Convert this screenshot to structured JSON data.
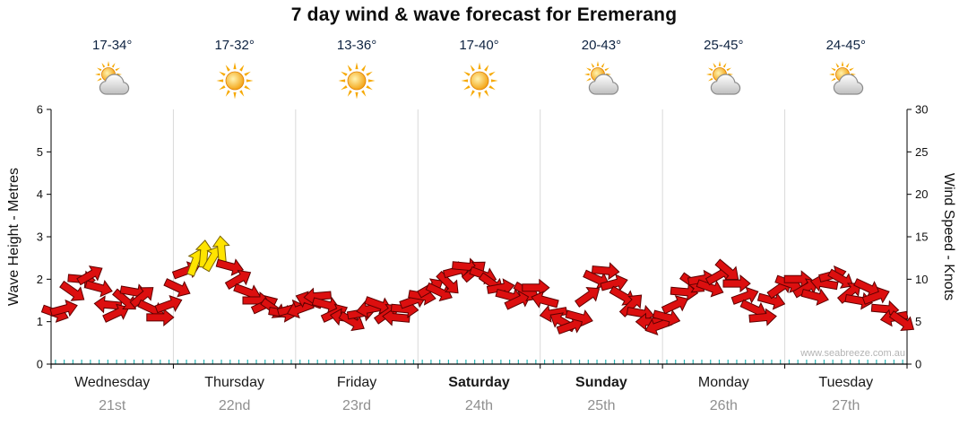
{
  "title": "7 day wind & wave forecast for Eremerang",
  "watermark": "www.seabreeze.com.au",
  "y_left": {
    "label": "Wave Height - Metres",
    "ticks": [
      0,
      1,
      2,
      3,
      4,
      5,
      6
    ]
  },
  "y_right": {
    "label": "Wind Speed - Knots",
    "ticks": [
      0,
      5,
      10,
      15,
      20,
      25,
      30
    ]
  },
  "days": [
    {
      "name": "Wednesday",
      "date": "21st",
      "temp": "17-34°",
      "icon": "sun-cloud",
      "bold": false
    },
    {
      "name": "Thursday",
      "date": "22nd",
      "temp": "17-32°",
      "icon": "sun",
      "bold": false
    },
    {
      "name": "Friday",
      "date": "23rd",
      "temp": "13-36°",
      "icon": "sun",
      "bold": false
    },
    {
      "name": "Saturday",
      "date": "24th",
      "temp": "17-40°",
      "icon": "sun",
      "bold": true
    },
    {
      "name": "Sunday",
      "date": "25th",
      "temp": "20-43°",
      "icon": "sun-cloud",
      "bold": true
    },
    {
      "name": "Monday",
      "date": "26th",
      "temp": "25-45°",
      "icon": "sun-cloud",
      "bold": false
    },
    {
      "name": "Tuesday",
      "date": "27th",
      "temp": "24-45°",
      "icon": "sun-cloud",
      "bold": false
    }
  ],
  "colors": {
    "arrow_red": "#dc0f0f",
    "arrow_red_outline": "#5e0000",
    "arrow_yellow": "#ffe400",
    "arrow_yellow_outline": "#7a6200",
    "temp_text": "#0d2240",
    "date_text": "#8f8f8f",
    "grid": "#d9d9d9",
    "axis": "#000000",
    "tick_cyan": "#2ab5b5",
    "sun": "#f6a800",
    "cloud_stroke": "#8c8c8c"
  },
  "chart_data": {
    "type": "wind-arrows",
    "title": "7 day wind & wave forecast for Eremerang",
    "xlabel_days": [
      "Wednesday 21st",
      "Thursday 22nd",
      "Friday 23rd",
      "Saturday 24th",
      "Sunday 25th",
      "Monday 26th",
      "Tuesday 27th"
    ],
    "ylabel_left": "Wave Height - Metres",
    "ylabel_right": "Wind Speed - Knots",
    "ylim_left_metres": [
      0,
      6
    ],
    "ylim_right_knots": [
      0,
      30
    ],
    "grid": "vertical-day-boundaries",
    "points_per_day": 14,
    "yellow_min_knots": 12,
    "speeds_knots": [
      6,
      6.5,
      8.5,
      10,
      10.5,
      9,
      7,
      6,
      7.5,
      8.5,
      8,
      6.5,
      5.5,
      7,
      9,
      11,
      12,
      13,
      12.5,
      13.5,
      11.5,
      10,
      8.5,
      7.5,
      7,
      6.5,
      6,
      6.5,
      6.5,
      7.5,
      8,
      7,
      6,
      5.5,
      5,
      6,
      6.5,
      7,
      6,
      5.5,
      6.5,
      7.5,
      8,
      9,
      8.5,
      9.5,
      11,
      11.5,
      11,
      10.5,
      9.5,
      9,
      8,
      7.5,
      8.5,
      9,
      7.5,
      6,
      5,
      4.5,
      5.5,
      8,
      10,
      11,
      9.5,
      8,
      7,
      6,
      5,
      4.5,
      5.5,
      7,
      8.5,
      9.5,
      10,
      9,
      10.5,
      11,
      9.5,
      8,
      6.5,
      5.5,
      7.5,
      9,
      9.5,
      10,
      9,
      8,
      9.5,
      10.5,
      10,
      8.5,
      7.5,
      9,
      8,
      6.5,
      5.5,
      5
    ],
    "directions_deg": [
      20,
      -15,
      35,
      5,
      -30,
      15,
      185,
      -25,
      40,
      10,
      -40,
      25,
      0,
      -20,
      25,
      -20,
      -70,
      -85,
      -60,
      -95,
      15,
      -30,
      20,
      0,
      -25,
      35,
      10,
      -15,
      160,
      200,
      175,
      15,
      -25,
      190,
      30,
      -10,
      170,
      20,
      -35,
      185,
      5,
      -20,
      10,
      -30,
      25,
      45,
      -15,
      5,
      -40,
      20,
      35,
      -10,
      15,
      -25,
      30,
      0,
      195,
      170,
      210,
      -20,
      15,
      -35,
      25,
      5,
      -15,
      30,
      -45,
      10,
      180,
      160,
      15,
      -25,
      5,
      35,
      -10,
      20,
      -30,
      40,
      0,
      -20,
      25,
      -5,
      15,
      -35,
      20,
      0,
      -30,
      15,
      190,
      -15,
      30,
      -40,
      10,
      25,
      -20,
      5,
      170,
      35
    ]
  }
}
